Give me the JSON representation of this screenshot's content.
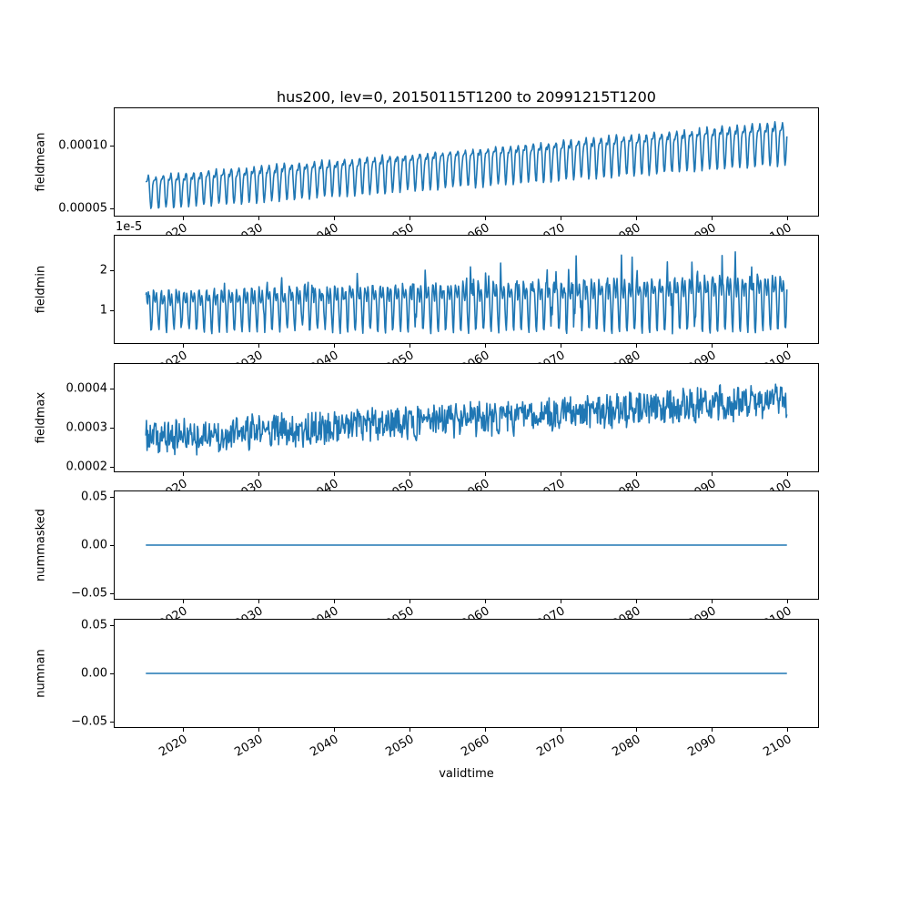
{
  "chart_data": {
    "type": "line",
    "title": "hus200, lev=0, 20150115T1200 to 20991215T1200",
    "xlabel": "validtime",
    "line_color": "#1f77b4",
    "grid": false,
    "legend": false,
    "x_start": 2015.04,
    "x_end": 2099.96,
    "points_per_year": 12,
    "xlim": [
      2010.79,
      2104.21
    ],
    "xticks": [
      2020,
      2030,
      2040,
      2050,
      2060,
      2070,
      2080,
      2090,
      2100
    ],
    "xtick_rotation_deg": 30,
    "subplots": [
      {
        "ylabel": "fieldmean",
        "ylim": [
          4.3e-05,
          0.000131
        ],
        "yticks": [
          {
            "value": 5e-05,
            "label": "0.00005"
          },
          {
            "value": 0.0001,
            "label": "0.00010"
          }
        ],
        "series": {
          "kind": "seasonal",
          "seed": 11,
          "trend_start": 6.5e-05,
          "trend_end": 0.000106,
          "amp_start": 1.65e-05,
          "amp_end": 2.15e-05,
          "h1": 0.7,
          "h2": 0.3,
          "phase2": 2.0,
          "noise": 1.5e-06
        }
      },
      {
        "ylabel": "fieldmin",
        "offset_label": "1e-5",
        "ylim": [
          1.6e-06,
          2.89e-05
        ],
        "yticks": [
          {
            "value": 1e-05,
            "label": "1"
          },
          {
            "value": 2e-05,
            "label": "2"
          }
        ],
        "series": {
          "kind": "seasonal",
          "seed": 23,
          "trend_start": 1.1e-05,
          "trend_end": 1.35e-05,
          "amp_start": 6.2e-06,
          "amp_end": 8.8e-06,
          "h1": 0.55,
          "h2": 0.45,
          "phase2": 1.3,
          "noise": 8e-07,
          "spike_prob": 0.06,
          "spike_gain": 1.1
        }
      },
      {
        "ylabel": "fieldmax",
        "ylim": [
          0.000186,
          0.000465
        ],
        "yticks": [
          {
            "value": 0.0002,
            "label": "0.0002"
          },
          {
            "value": 0.0003,
            "label": "0.0003"
          },
          {
            "value": 0.0004,
            "label": "0.0004"
          }
        ],
        "series": {
          "kind": "seasonal",
          "seed": 37,
          "trend_start": 0.000272,
          "trend_end": 0.000372,
          "amp_start": 1.2e-05,
          "amp_end": 1.6e-05,
          "h1": 0.6,
          "h2": 0.4,
          "phase2": 0.8,
          "noise": 3.8e-05
        }
      },
      {
        "ylabel": "nummasked",
        "ylim": [
          -0.057,
          0.057
        ],
        "yticks": [
          {
            "value": 0.05,
            "label": "0.05"
          },
          {
            "value": 0.0,
            "label": "0.00"
          },
          {
            "value": -0.05,
            "label": "−0.05"
          }
        ],
        "series": {
          "kind": "flat",
          "value": 0
        }
      },
      {
        "ylabel": "numnan",
        "ylim": [
          -0.057,
          0.057
        ],
        "yticks": [
          {
            "value": 0.05,
            "label": "0.05"
          },
          {
            "value": 0.0,
            "label": "0.00"
          },
          {
            "value": -0.05,
            "label": "−0.05"
          }
        ],
        "series": {
          "kind": "flat",
          "value": 0
        }
      }
    ]
  }
}
